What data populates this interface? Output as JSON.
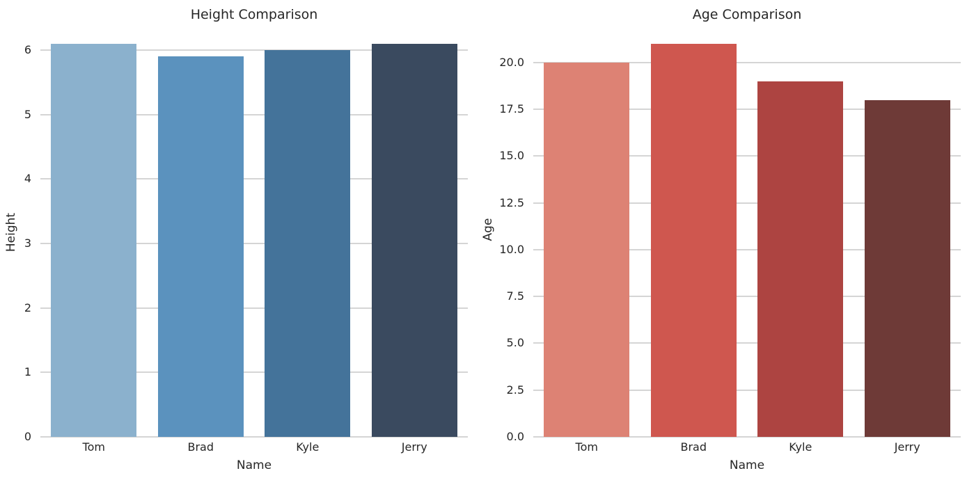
{
  "figure": {
    "background": "#ffffff",
    "text_color": "#262626",
    "grid_color": "#d5d5d5"
  },
  "chart_data": [
    {
      "type": "bar",
      "title": "Height Comparison",
      "xlabel": "Name",
      "ylabel": "Height",
      "categories": [
        "Tom",
        "Brad",
        "Kyle",
        "Jerry"
      ],
      "values": [
        6.1,
        5.9,
        6.0,
        6.1
      ],
      "bar_colors": [
        "#8bb1cd",
        "#5b92be",
        "#44739a",
        "#3a4a5f"
      ],
      "ytick_values": [
        0,
        1,
        2,
        3,
        4,
        5,
        6
      ],
      "ytick_labels": [
        "0",
        "1",
        "2",
        "3",
        "4",
        "5",
        "6"
      ],
      "ylim": [
        0,
        6.4
      ],
      "grid": true,
      "legend": null
    },
    {
      "type": "bar",
      "title": "Age Comparison",
      "xlabel": "Name",
      "ylabel": "Age",
      "categories": [
        "Tom",
        "Brad",
        "Kyle",
        "Jerry"
      ],
      "values": [
        20,
        21,
        19,
        18
      ],
      "bar_colors": [
        "#dd8274",
        "#cf574f",
        "#ad4441",
        "#6e3a37"
      ],
      "ytick_values": [
        0,
        2.5,
        5,
        7.5,
        10,
        12.5,
        15,
        17.5,
        20
      ],
      "ytick_labels": [
        "0.0",
        "2.5",
        "5.0",
        "7.5",
        "10.0",
        "12.5",
        "15.0",
        "17.5",
        "20.0"
      ],
      "ylim": [
        0,
        22.05
      ],
      "grid": true,
      "legend": null
    }
  ]
}
